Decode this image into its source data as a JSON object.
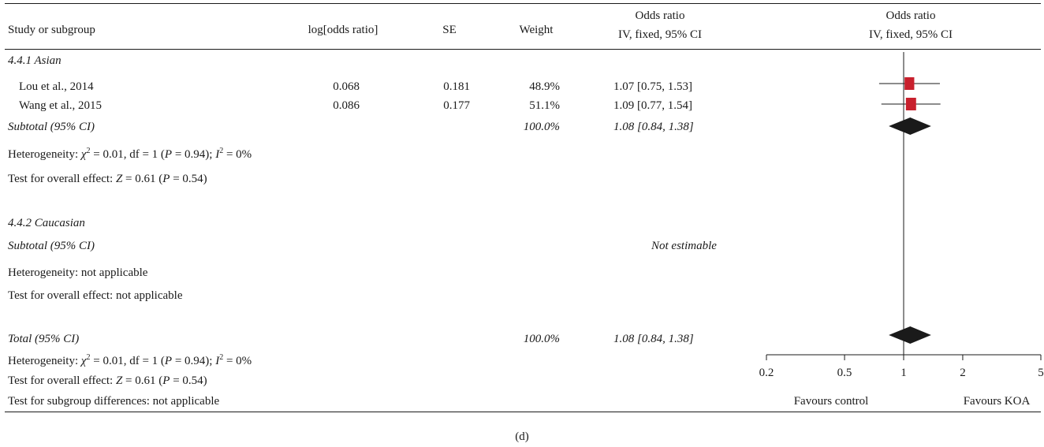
{
  "header": {
    "study": "Study or subgroup",
    "logor": "log[odds ratio]",
    "se": "SE",
    "weight": "Weight",
    "or_l1": "Odds ratio",
    "or_l2": "IV, fixed, 95% CI",
    "plot_l1": "Odds ratio",
    "plot_l2": "IV, fixed, 95% CI"
  },
  "subgroups": [
    {
      "name": "4.4.1 Asian",
      "studies": [
        {
          "name": "Lou et al., 2014",
          "logor": "0.068",
          "se": "0.181",
          "weight": "48.9%",
          "ci": "1.07 [0.75, 1.53]"
        },
        {
          "name": "Wang et al., 2015",
          "logor": "0.086",
          "se": "0.177",
          "weight": "51.1%",
          "ci": "1.09 [0.77, 1.54]"
        }
      ],
      "subtotal_label": "Subtotal (95% CI)",
      "subtotal_weight": "100.0%",
      "subtotal_ci": "1.08 [0.84, 1.38]",
      "het_prefix": "Heterogeneity: ",
      "het_chi": "χ",
      "het_mid": " = 0.01, df = 1 (",
      "het_p": "P",
      "het_pval": " = 0.94); ",
      "het_i": "I",
      "het_ival": " = 0%",
      "test_prefix": "Test for overall effect: ",
      "test_z": "Z",
      "test_mid": " = 0.61 (",
      "test_p": "P",
      "test_pval": " = 0.54)"
    },
    {
      "name": "4.4.2 Caucasian",
      "subtotal_label": "Subtotal (95% CI)",
      "subtotal_ci": "Not estimable",
      "het": "Heterogeneity: not applicable",
      "test": "Test for overall effect: not applicable"
    }
  ],
  "total": {
    "label": "Total (95% CI)",
    "weight": "100.0%",
    "ci": "1.08 [0.84, 1.38]",
    "het_prefix": "Heterogeneity: ",
    "het_chi": "χ",
    "het_mid": " = 0.01, df = 1 (",
    "het_p": "P",
    "het_pval": " = 0.94); ",
    "het_i": "I",
    "het_ival": " = 0%",
    "test_prefix": "Test for overall effect: ",
    "test_z": "Z",
    "test_mid": " = 0.61 (",
    "test_p": "P",
    "test_pval": " = 0.54)",
    "subgroup_diff": "Test for subgroup differences: not applicable"
  },
  "caption": "(d)",
  "chart_data": {
    "type": "forest",
    "scale": "log",
    "xlim": [
      0.2,
      5
    ],
    "ticks": [
      0.2,
      0.5,
      1,
      2,
      5
    ],
    "tick_labels": [
      "0.2",
      "0.5",
      "1",
      "2",
      "5"
    ],
    "reference_line": 1,
    "favours_left": "Favours control",
    "favours_right": "Favours KOA",
    "marker_color": "#c8202d",
    "diamond_color": "#1a1a1a",
    "studies": [
      {
        "name": "Lou et al., 2014",
        "or": 1.07,
        "lo": 0.75,
        "hi": 1.53,
        "weight": 48.9
      },
      {
        "name": "Wang et al., 2015",
        "or": 1.09,
        "lo": 0.77,
        "hi": 1.54,
        "weight": 51.1
      }
    ],
    "pooled": [
      {
        "name": "Subtotal (95% CI)",
        "or": 1.08,
        "lo": 0.84,
        "hi": 1.38
      },
      {
        "name": "Total (95% CI)",
        "or": 1.08,
        "lo": 0.84,
        "hi": 1.38
      }
    ]
  }
}
